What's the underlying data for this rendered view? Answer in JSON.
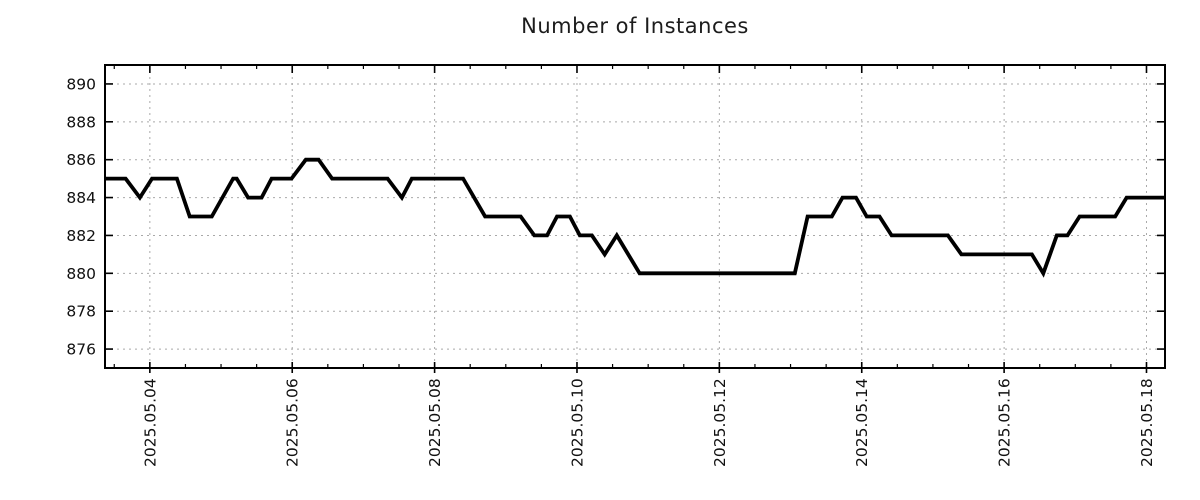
{
  "chart_data": {
    "type": "line",
    "title": "Number of Instances",
    "xlabel": "",
    "ylabel": "",
    "x_unit": "day of May 2025",
    "xlim_days": [
      3.37,
      18.26
    ],
    "ylim": [
      875,
      891
    ],
    "grid": "dotted at major ticks, both axes",
    "legend": "none",
    "x_axis": {
      "major_tick_days": [
        4,
        6,
        8,
        10,
        12,
        14,
        16,
        18
      ],
      "major_tick_labels": [
        "2025.05.04",
        "2025.05.06",
        "2025.05.08",
        "2025.05.10",
        "2025.05.12",
        "2025.05.14",
        "2025.05.16",
        "2025.05.18"
      ],
      "label_rotation_degrees": -90,
      "minor_tick_step_days": 0.5
    },
    "y_axis": {
      "major_tick_values": [
        876,
        878,
        880,
        882,
        884,
        886,
        888,
        890
      ],
      "major_tick_labels": [
        "876",
        "878",
        "880",
        "882",
        "884",
        "886",
        "888",
        "890"
      ]
    },
    "series": [
      {
        "name": "number-of-instances",
        "color": "#000000",
        "points_day_value": [
          [
            3.37,
            885
          ],
          [
            3.66,
            885
          ],
          [
            3.86,
            884
          ],
          [
            4.03,
            885
          ],
          [
            4.38,
            885
          ],
          [
            4.56,
            883
          ],
          [
            4.87,
            883
          ],
          [
            5.17,
            885
          ],
          [
            5.22,
            885
          ],
          [
            5.38,
            884
          ],
          [
            5.57,
            884
          ],
          [
            5.71,
            885
          ],
          [
            5.99,
            885
          ],
          [
            6.19,
            886
          ],
          [
            6.37,
            886
          ],
          [
            6.56,
            885
          ],
          [
            7.34,
            885
          ],
          [
            7.54,
            884
          ],
          [
            7.68,
            885
          ],
          [
            8.4,
            885
          ],
          [
            8.71,
            883
          ],
          [
            9.21,
            883
          ],
          [
            9.4,
            882
          ],
          [
            9.58,
            882
          ],
          [
            9.72,
            883
          ],
          [
            9.9,
            883
          ],
          [
            10.04,
            882
          ],
          [
            10.21,
            882
          ],
          [
            10.39,
            881
          ],
          [
            10.56,
            882
          ],
          [
            10.88,
            880
          ],
          [
            13.06,
            880
          ],
          [
            13.24,
            883
          ],
          [
            13.58,
            883
          ],
          [
            13.73,
            884
          ],
          [
            13.92,
            884
          ],
          [
            14.07,
            883
          ],
          [
            14.25,
            883
          ],
          [
            14.42,
            882
          ],
          [
            15.21,
            882
          ],
          [
            15.4,
            881
          ],
          [
            16.39,
            881
          ],
          [
            16.55,
            880
          ],
          [
            16.74,
            882
          ],
          [
            16.89,
            882
          ],
          [
            17.06,
            883
          ],
          [
            17.56,
            883
          ],
          [
            17.72,
            884
          ],
          [
            18.26,
            884
          ]
        ]
      }
    ],
    "colors": {
      "line": "#000000",
      "grid": "#a9a9a9",
      "border": "#000000",
      "text": "#111111",
      "background": "#ffffff"
    }
  }
}
